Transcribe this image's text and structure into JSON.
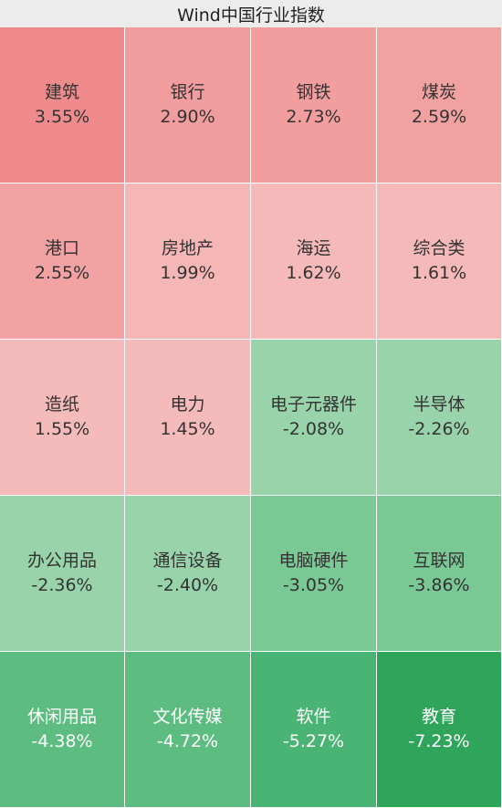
{
  "chart_data": {
    "type": "heatmap",
    "title": "Wind中国行业指数",
    "columns": 4,
    "unit": "%",
    "items": [
      {
        "name": "建筑",
        "value": 3.55,
        "label": "3.55%",
        "color": "#ef8b8c"
      },
      {
        "name": "银行",
        "value": 2.9,
        "label": "2.90%",
        "color": "#f29d9d"
      },
      {
        "name": "钢铁",
        "value": 2.73,
        "label": "2.73%",
        "color": "#f29e9e"
      },
      {
        "name": "煤炭",
        "value": 2.59,
        "label": "2.59%",
        "color": "#f2a1a1"
      },
      {
        "name": "港口",
        "value": 2.55,
        "label": "2.55%",
        "color": "#f2a2a2"
      },
      {
        "name": "房地产",
        "value": 1.99,
        "label": "1.99%",
        "color": "#f5b6b6"
      },
      {
        "name": "海运",
        "value": 1.62,
        "label": "1.62%",
        "color": "#f5b9b9"
      },
      {
        "name": "综合类",
        "value": 1.61,
        "label": "1.61%",
        "color": "#f5b9b9"
      },
      {
        "name": "造纸",
        "value": 1.55,
        "label": "1.55%",
        "color": "#f5baba"
      },
      {
        "name": "电力",
        "value": 1.45,
        "label": "1.45%",
        "color": "#f5baba"
      },
      {
        "name": "电子元器件",
        "value": -2.08,
        "label": "-2.08%",
        "color": "#98d3aa"
      },
      {
        "name": "半导体",
        "value": -2.26,
        "label": "-2.26%",
        "color": "#98d3aa"
      },
      {
        "name": "办公用品",
        "value": -2.36,
        "label": "-2.36%",
        "color": "#98d3aa"
      },
      {
        "name": "通信设备",
        "value": -2.4,
        "label": "-2.40%",
        "color": "#98d3aa"
      },
      {
        "name": "电脑硬件",
        "value": -3.05,
        "label": "-3.05%",
        "color": "#7ac894"
      },
      {
        "name": "互联网",
        "value": -3.86,
        "label": "-3.86%",
        "color": "#7ac894"
      },
      {
        "name": "休闲用品",
        "value": -4.38,
        "label": "-4.38%",
        "color": "#5dbd80"
      },
      {
        "name": "文化传媒",
        "value": -4.72,
        "label": "-4.72%",
        "color": "#5dbd80"
      },
      {
        "name": "软件",
        "value": -5.27,
        "label": "-5.27%",
        "color": "#4ab474"
      },
      {
        "name": "教育",
        "value": -7.23,
        "label": "-7.23%",
        "color": "#2ea55a"
      }
    ]
  }
}
